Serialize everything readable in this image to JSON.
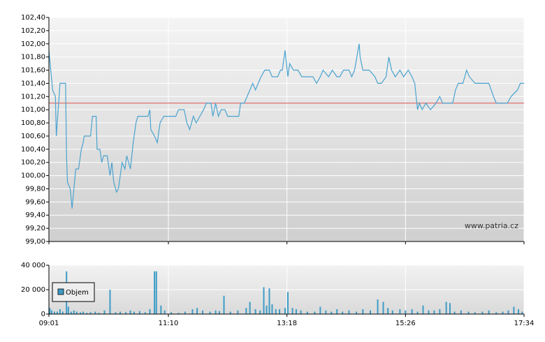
{
  "chart_data": [
    {
      "type": "line",
      "color": "#4aa3cf",
      "watermark": "www.patria.cz",
      "reference_line": 101.1,
      "reference_color": "#e05050",
      "xlim": [
        541,
        1054
      ],
      "ylim": [
        99.0,
        102.4
      ],
      "yticks": [
        {
          "value": 99.0,
          "label": "99,00"
        },
        {
          "value": 99.2,
          "label": "99,20"
        },
        {
          "value": 99.4,
          "label": "99,40"
        },
        {
          "value": 99.6,
          "label": "99,60"
        },
        {
          "value": 99.8,
          "label": "99,80"
        },
        {
          "value": 100.0,
          "label": "100,00"
        },
        {
          "value": 100.2,
          "label": "100,20"
        },
        {
          "value": 100.4,
          "label": "100,40"
        },
        {
          "value": 100.6,
          "label": "100,60"
        },
        {
          "value": 100.8,
          "label": "100,80"
        },
        {
          "value": 101.0,
          "label": "101,00"
        },
        {
          "value": 101.2,
          "label": "101,20"
        },
        {
          "value": 101.4,
          "label": "101,40"
        },
        {
          "value": 101.6,
          "label": "101,60"
        },
        {
          "value": 101.8,
          "label": "101,80"
        },
        {
          "value": 102.0,
          "label": "102,00"
        },
        {
          "value": 102.2,
          "label": "102,20"
        },
        {
          "value": 102.4,
          "label": "102,40"
        }
      ],
      "grid": true,
      "x": [
        541,
        543,
        545,
        548,
        549,
        551,
        553,
        559,
        560,
        561,
        564,
        566,
        568,
        570,
        573,
        576,
        578,
        579,
        582,
        586,
        588,
        592,
        593,
        596,
        598,
        600,
        604,
        605,
        607,
        609,
        611,
        614,
        616,
        618,
        620,
        623,
        625,
        629,
        632,
        635,
        637,
        648,
        650,
        651,
        655,
        658,
        661,
        665,
        678,
        681,
        687,
        690,
        693,
        697,
        700,
        704,
        708,
        711,
        716,
        718,
        721,
        724,
        727,
        731,
        734,
        746,
        748,
        752,
        755,
        758,
        761,
        764,
        767,
        770,
        774,
        779,
        782,
        788,
        791,
        793,
        796,
        799,
        801,
        805,
        810,
        814,
        826,
        830,
        834,
        837,
        843,
        847,
        852,
        855,
        859,
        865,
        868,
        871,
        876,
        877,
        880,
        887,
        893,
        896,
        900,
        905,
        908,
        911,
        915,
        920,
        924,
        929,
        933,
        936,
        939,
        941,
        944,
        948,
        953,
        959,
        963,
        966,
        977,
        980,
        983,
        988,
        992,
        995,
        1001,
        1016,
        1021,
        1024,
        1036,
        1040,
        1047,
        1050,
        1054
      ],
      "values": [
        101.9,
        101.6,
        101.3,
        101.2,
        100.6,
        101.0,
        101.4,
        101.4,
        100.3,
        99.9,
        99.8,
        99.5,
        99.8,
        100.1,
        100.1,
        100.4,
        100.5,
        100.6,
        100.6,
        100.6,
        100.9,
        100.9,
        100.4,
        100.4,
        100.2,
        100.3,
        100.3,
        100.2,
        100.0,
        100.2,
        99.9,
        99.75,
        99.8,
        100.0,
        100.2,
        100.1,
        100.3,
        100.1,
        100.5,
        100.8,
        100.9,
        100.9,
        101.0,
        100.7,
        100.6,
        100.5,
        100.8,
        100.9,
        100.9,
        101.0,
        101.0,
        100.8,
        100.7,
        100.9,
        100.8,
        100.9,
        101.0,
        101.1,
        101.1,
        100.9,
        101.1,
        100.9,
        101.0,
        101.0,
        100.9,
        100.9,
        101.1,
        101.1,
        101.2,
        101.3,
        101.4,
        101.3,
        101.4,
        101.5,
        101.6,
        101.6,
        101.5,
        101.5,
        101.6,
        101.6,
        101.9,
        101.5,
        101.7,
        101.6,
        101.6,
        101.5,
        101.5,
        101.4,
        101.5,
        101.6,
        101.5,
        101.6,
        101.5,
        101.5,
        101.6,
        101.6,
        101.5,
        101.6,
        102.0,
        101.8,
        101.6,
        101.6,
        101.5,
        101.4,
        101.4,
        101.5,
        101.8,
        101.6,
        101.5,
        101.6,
        101.5,
        101.6,
        101.5,
        101.4,
        101.0,
        101.1,
        101.0,
        101.1,
        101.0,
        101.1,
        101.2,
        101.1,
        101.1,
        101.3,
        101.4,
        101.4,
        101.6,
        101.5,
        101.4,
        101.4,
        101.2,
        101.1,
        101.1,
        101.2,
        101.3,
        101.4,
        101.4
      ]
    },
    {
      "type": "bar",
      "xlim": [
        541,
        1054
      ],
      "ylim": [
        0,
        40000
      ],
      "xticks": [
        {
          "value": 541,
          "label": "09:01"
        },
        {
          "value": 670,
          "label": "11:10"
        },
        {
          "value": 798,
          "label": "13:18"
        },
        {
          "value": 926,
          "label": "15:26"
        },
        {
          "value": 1054,
          "label": "17:34"
        }
      ],
      "yticks": [
        0,
        {
          "value": 20000,
          "label": "20 000"
        },
        {
          "value": 40000,
          "label": "40 000"
        }
      ],
      "grid": true,
      "legend": "upper-left",
      "series": [
        {
          "name": "Objem",
          "color": "#3d9cc6",
          "x": [
            542,
            544,
            547,
            550,
            553,
            556,
            560,
            562,
            565,
            568,
            571,
            575,
            578,
            582,
            586,
            591,
            595,
            601,
            607,
            613,
            618,
            624,
            629,
            633,
            639,
            645,
            650,
            655,
            657,
            662,
            666,
            673,
            681,
            688,
            696,
            701,
            707,
            715,
            721,
            725,
            730,
            737,
            745,
            754,
            758,
            764,
            769,
            773,
            776,
            779,
            782,
            786,
            790,
            796,
            799,
            804,
            808,
            813,
            820,
            828,
            834,
            840,
            846,
            852,
            858,
            865,
            873,
            880,
            888,
            896,
            902,
            907,
            912,
            920,
            926,
            933,
            939,
            945,
            951,
            957,
            963,
            970,
            974,
            979,
            986,
            994,
            1001,
            1009,
            1016,
            1024,
            1031,
            1037,
            1043,
            1048,
            1052
          ],
          "values": [
            5000,
            3000,
            2000,
            2000,
            4000,
            2000,
            35000,
            6000,
            2000,
            3000,
            2000,
            1500,
            2000,
            1000,
            1500,
            2000,
            1000,
            3000,
            20000,
            1500,
            2000,
            1500,
            3000,
            2000,
            2500,
            1500,
            4000,
            35000,
            35000,
            7000,
            3000,
            1500,
            1000,
            2000,
            4000,
            5000,
            3000,
            2000,
            3000,
            2500,
            15000,
            2000,
            3000,
            5000,
            10000,
            4000,
            3000,
            22000,
            7000,
            21000,
            8000,
            4000,
            4000,
            5000,
            18000,
            5000,
            4000,
            3000,
            2000,
            2000,
            6000,
            3000,
            2000,
            4000,
            2000,
            3000,
            2000,
            4000,
            3000,
            12000,
            10000,
            5000,
            3000,
            4000,
            3000,
            4000,
            2000,
            7000,
            3000,
            3000,
            4000,
            10000,
            9000,
            2000,
            3000,
            2000,
            1500,
            2000,
            3000,
            1500,
            2000,
            3000,
            6000,
            4000,
            2000
          ]
        }
      ]
    }
  ]
}
